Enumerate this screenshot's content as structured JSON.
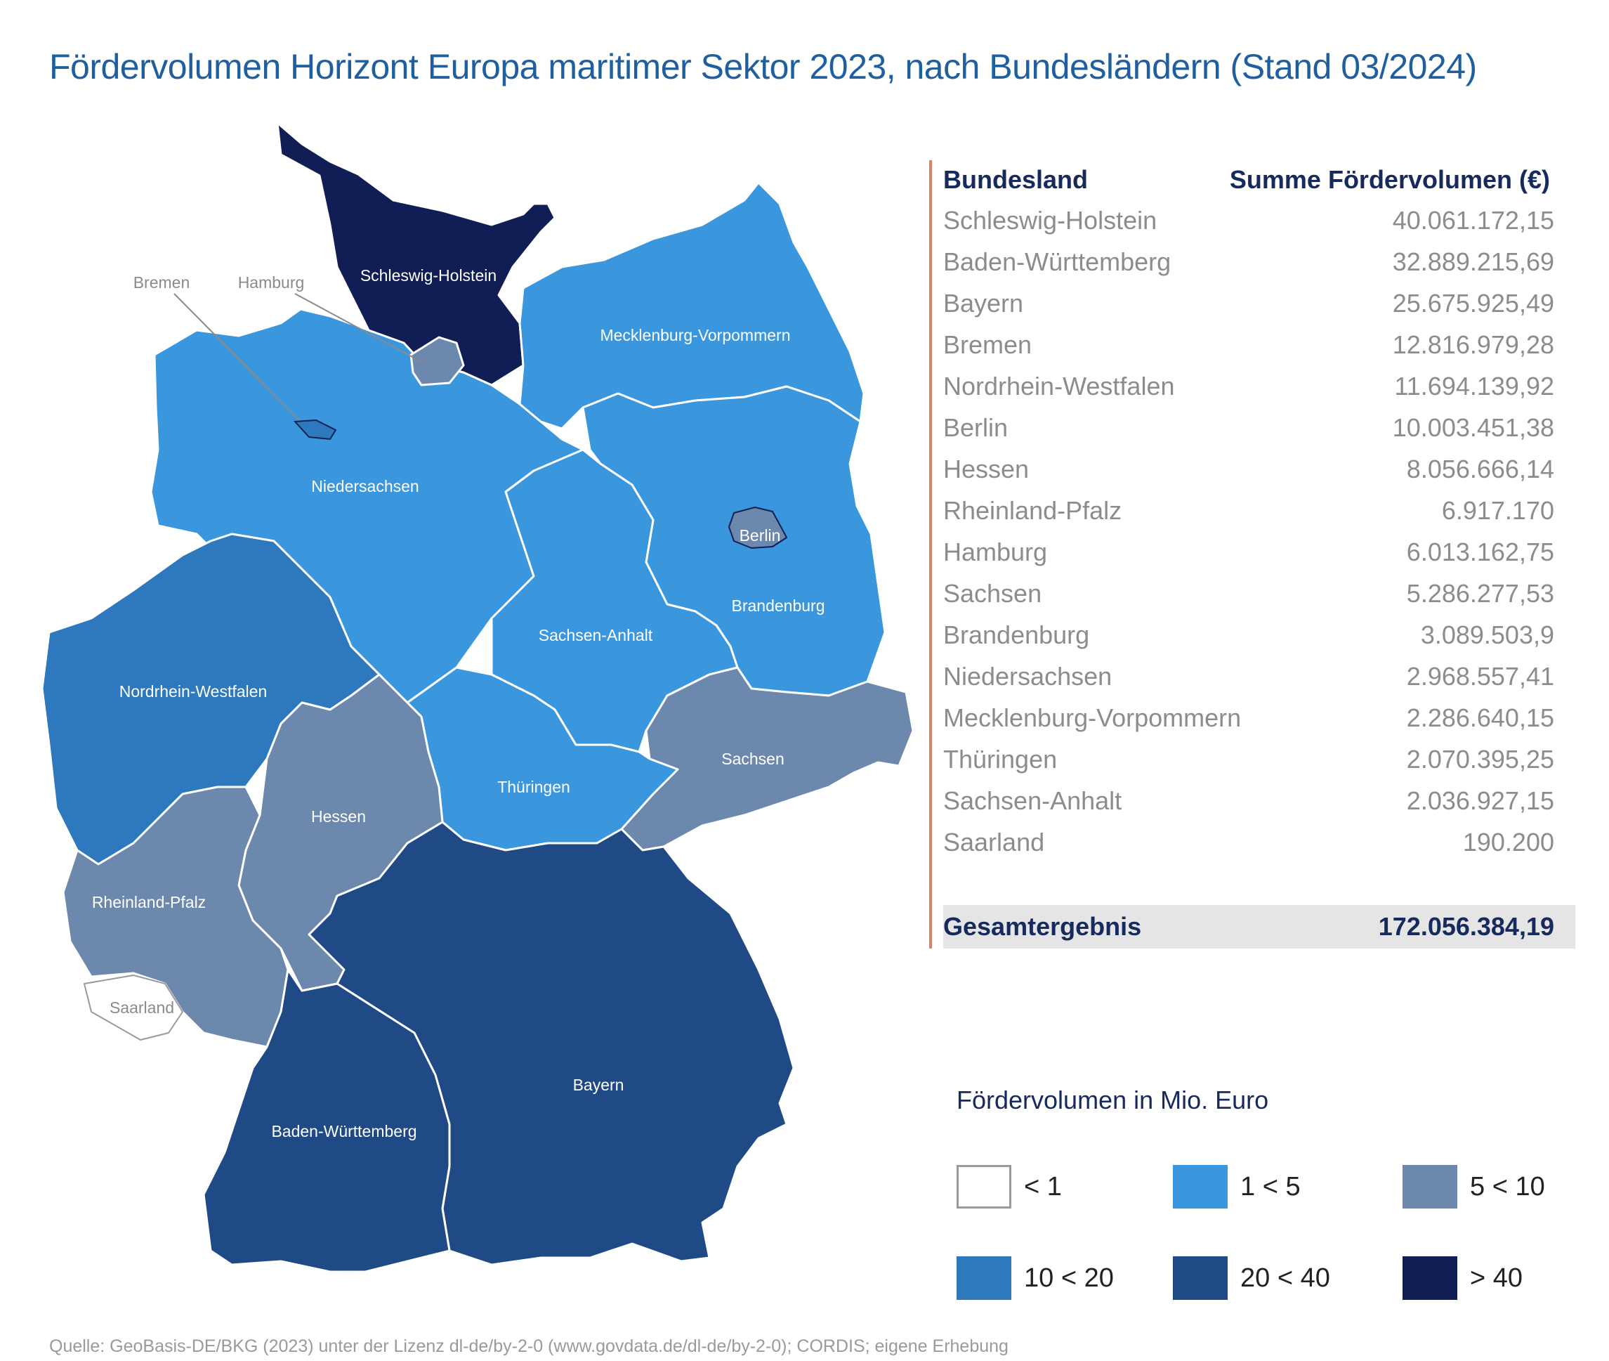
{
  "title": "Fördervolumen Horizont Europa maritimer Sektor 2023, nach Bundesländern (Stand 03/2024)",
  "table": {
    "col_state": "Bundesland",
    "col_sum": "Summe Fördervolumen (€)",
    "rows": [
      {
        "state": "Schleswig-Holstein",
        "value": "40.061.172,15"
      },
      {
        "state": "Baden-Württemberg",
        "value": "32.889.215,69"
      },
      {
        "state": "Bayern",
        "value": "25.675.925,49"
      },
      {
        "state": "Bremen",
        "value": "12.816.979,28"
      },
      {
        "state": "Nordrhein-Westfalen",
        "value": "11.694.139,92"
      },
      {
        "state": "Berlin",
        "value": "10.003.451,38"
      },
      {
        "state": "Hessen",
        "value": "8.056.666,14"
      },
      {
        "state": "Rheinland-Pfalz",
        "value": "6.917.170"
      },
      {
        "state": "Hamburg",
        "value": "6.013.162,75"
      },
      {
        "state": "Sachsen",
        "value": "5.286.277,53"
      },
      {
        "state": "Brandenburg",
        "value": "3.089.503,9"
      },
      {
        "state": "Niedersachsen",
        "value": "2.968.557,41"
      },
      {
        "state": "Mecklenburg-Vorpommern",
        "value": "2.286.640,15"
      },
      {
        "state": "Thüringen",
        "value": "2.070.395,25"
      },
      {
        "state": "Sachsen-Anhalt",
        "value": "2.036.927,15"
      },
      {
        "state": "Saarland",
        "value": "190.200"
      }
    ],
    "total_label": "Gesamtergebnis",
    "total_value": "172.056.384,19"
  },
  "map": {
    "labels": {
      "sh": "Schleswig-Holstein",
      "mv": "Mecklenburg-Vorpommern",
      "ni": "Niedersachsen",
      "bb": "Brandenburg",
      "be": "Berlin",
      "st": "Sachsen-Anhalt",
      "nw": "Nordrhein-Westfalen",
      "th": "Thüringen",
      "sn": "Sachsen",
      "he": "Hessen",
      "rp": "Rheinland-Pfalz",
      "sl": "Saarland",
      "bw": "Baden-Württemberg",
      "by": "Bayern",
      "callout_bremen": "Bremen",
      "callout_hamburg": "Hamburg"
    },
    "colors": {
      "lt1": "#ffffff",
      "c1_5": "#3a97dd",
      "c5_10": "#6c88ad",
      "c10_20": "#2e78bd",
      "c20_40": "#1f4a86",
      "gt40": "#111e55"
    }
  },
  "legend": {
    "title": "Fördervolumen in Mio. Euro",
    "items": [
      {
        "label": "< 1",
        "color": "#ffffff"
      },
      {
        "label": "1 < 5",
        "color": "#3a97dd"
      },
      {
        "label": "5 < 10",
        "color": "#6c88ad"
      },
      {
        "label": "10 < 20",
        "color": "#2e78bd"
      },
      {
        "label": "20 < 40",
        "color": "#1f4a86"
      },
      {
        "label": "> 40",
        "color": "#111e55"
      }
    ]
  },
  "source": "Quelle: GeoBasis-DE/BKG (2023) unter der Lizenz dl-de/by-2-0 (www.govdata.de/dl-de/by-2-0); CORDIS; eigene Erhebung"
}
